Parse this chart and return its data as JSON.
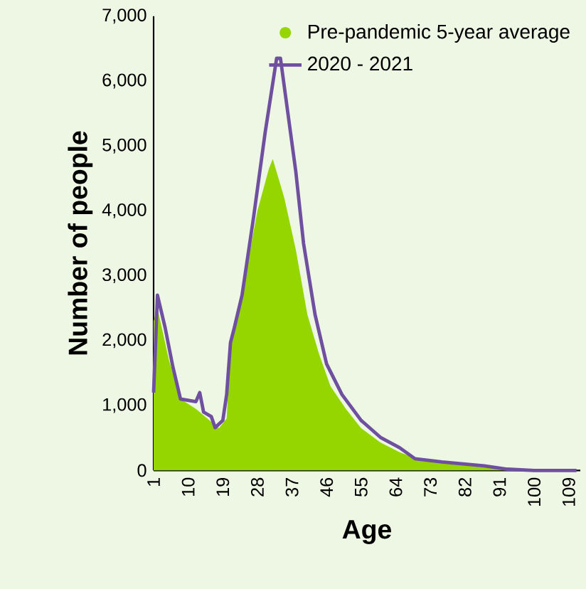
{
  "chart_data": {
    "type": "area",
    "xlabel": "Age",
    "ylabel": "Number of people",
    "xlim": [
      1,
      112
    ],
    "ylim": [
      0,
      7000
    ],
    "xticks": [
      1,
      10,
      19,
      28,
      37,
      46,
      55,
      64,
      73,
      82,
      91,
      100,
      109
    ],
    "yticks": [
      {
        "value": 0,
        "label": "0"
      },
      {
        "value": 1000,
        "label": "1,000"
      },
      {
        "value": 2000,
        "label": "2,000"
      },
      {
        "value": 3000,
        "label": "3,000"
      },
      {
        "value": 4000,
        "label": "4,000"
      },
      {
        "value": 5000,
        "label": "5,000"
      },
      {
        "value": 6000,
        "label": "6,000"
      },
      {
        "value": 7000,
        "label": "7,000"
      }
    ],
    "legend": "top right",
    "series": [
      {
        "name": "Pre-pandemic 5-year average",
        "color": "#96d600",
        "x": [
          1,
          2,
          5,
          8,
          12,
          16,
          18,
          20,
          21,
          24,
          28,
          31,
          32,
          35,
          38,
          41,
          44,
          47,
          51,
          55,
          60,
          65,
          70,
          76,
          85,
          93,
          100,
          111
        ],
        "values": [
          2300,
          2500,
          1700,
          1100,
          950,
          750,
          650,
          800,
          1900,
          2700,
          4000,
          4650,
          4800,
          4200,
          3400,
          2400,
          1800,
          1300,
          950,
          650,
          430,
          280,
          170,
          120,
          70,
          20,
          0,
          0
        ]
      },
      {
        "name": "2020 - 2021",
        "type": "line",
        "color": "#6f4fa0",
        "x": [
          1,
          2,
          4,
          6,
          8,
          12,
          13,
          14,
          16,
          17,
          19,
          20,
          21,
          22,
          24,
          26,
          27,
          30,
          33,
          34,
          38,
          40,
          43,
          46,
          50,
          55,
          60,
          65,
          69,
          76,
          87,
          93,
          100,
          111
        ],
        "values": [
          1200,
          2700,
          2200,
          1600,
          1100,
          1060,
          1200,
          900,
          830,
          660,
          770,
          1170,
          1970,
          2200,
          2700,
          3500,
          3900,
          5200,
          6350,
          6350,
          4600,
          3500,
          2400,
          1640,
          1170,
          770,
          510,
          350,
          180,
          130,
          70,
          20,
          0,
          0
        ]
      }
    ]
  }
}
